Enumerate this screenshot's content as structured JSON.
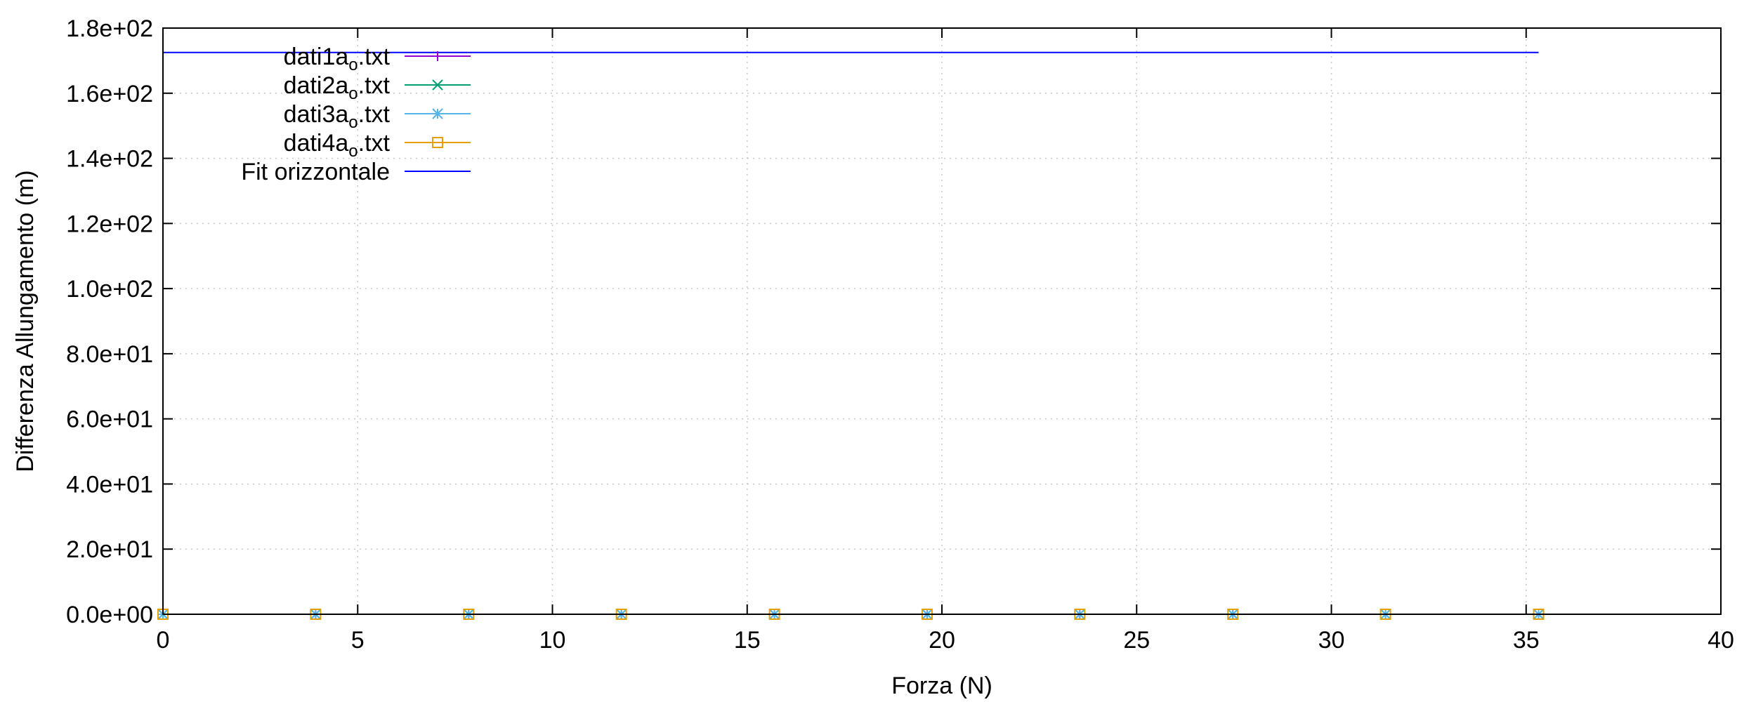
{
  "chart_data": {
    "type": "line",
    "title": "",
    "xlabel": "Forza (N)",
    "ylabel": "Differenza Allungamento (m)",
    "xlim": [
      0,
      40
    ],
    "ylim": [
      0,
      180
    ],
    "x_ticks": [
      "0",
      "5",
      "10",
      "15",
      "20",
      "25",
      "30",
      "35",
      "40"
    ],
    "y_ticks": [
      "0.0e+00",
      "2.0e+01",
      "4.0e+01",
      "6.0e+01",
      "8.0e+01",
      "1.0e+02",
      "1.2e+02",
      "1.4e+02",
      "1.6e+02",
      "1.8e+02"
    ],
    "grid": true,
    "legend_position": "top-left",
    "series": [
      {
        "name": "dati1a",
        "name_sub": "o",
        "name_suffix": ".txt",
        "color": "#9400d3",
        "marker": "plus",
        "x": [
          0,
          3.92,
          7.85,
          11.77,
          15.7,
          19.62,
          23.54,
          27.47,
          31.39,
          35.32
        ],
        "y": [
          0,
          0,
          0,
          0,
          0,
          0,
          0,
          0,
          0,
          0
        ]
      },
      {
        "name": "dati2a",
        "name_sub": "o",
        "name_suffix": ".txt",
        "color": "#009e73",
        "marker": "cross",
        "x": [
          0,
          3.92,
          7.85,
          11.77,
          15.7,
          19.62,
          23.54,
          27.47,
          31.39,
          35.32
        ],
        "y": [
          0,
          0,
          0,
          0,
          0,
          0,
          0,
          0,
          0,
          0
        ]
      },
      {
        "name": "dati3a",
        "name_sub": "o",
        "name_suffix": ".txt",
        "color": "#56b4e9",
        "marker": "star",
        "x": [
          0,
          3.92,
          7.85,
          11.77,
          15.7,
          19.62,
          23.54,
          27.47,
          31.39,
          35.32
        ],
        "y": [
          0,
          0,
          0,
          0,
          0,
          0,
          0,
          0,
          0,
          0
        ]
      },
      {
        "name": "dati4a",
        "name_sub": "o",
        "name_suffix": ".txt",
        "color": "#e69f00",
        "marker": "square",
        "x": [
          0,
          3.92,
          7.85,
          11.77,
          15.7,
          19.62,
          23.54,
          27.47,
          31.39,
          35.32
        ],
        "y": [
          0,
          0,
          0,
          0,
          0,
          0,
          0,
          0,
          0,
          0
        ]
      },
      {
        "name": "Fit orizzontale",
        "name_sub": "",
        "name_suffix": "",
        "color": "#0000ff",
        "marker": "none",
        "x": [
          0,
          35.32
        ],
        "y": [
          172.5,
          172.5
        ]
      }
    ]
  }
}
